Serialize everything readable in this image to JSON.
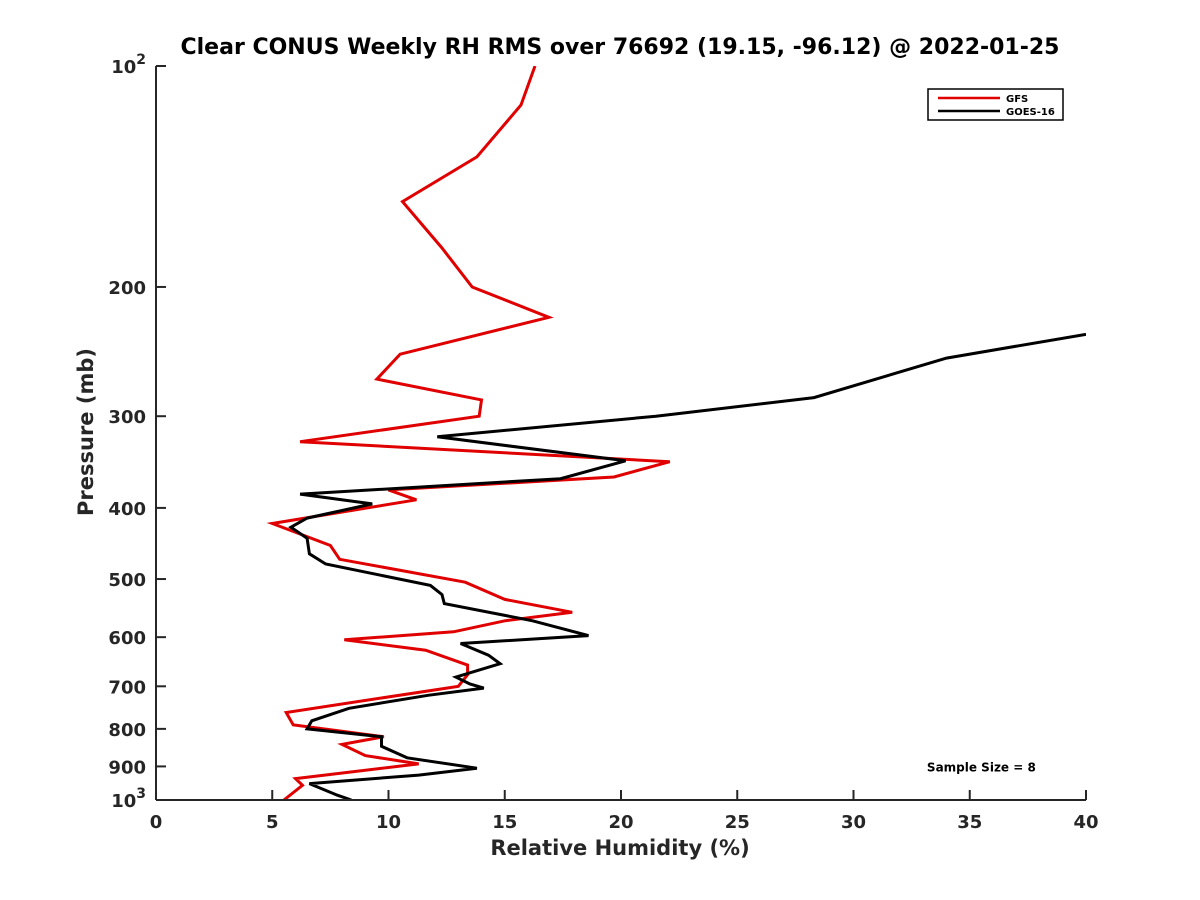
{
  "chart_data": {
    "type": "line",
    "title": "Clear CONUS Weekly RH RMS over 76692 (19.15, -96.12) @ 2022-01-25",
    "xlabel": "Relative Humidity (%)",
    "ylabel": "Pressure (mb)",
    "xlim": [
      0,
      40
    ],
    "ylim": [
      100,
      1000
    ],
    "yscale": "log",
    "y_reversed": true,
    "grid": false,
    "legend_position": "top-right",
    "x_ticks": [
      0,
      5,
      10,
      15,
      20,
      25,
      30,
      35,
      40
    ],
    "y_ticks": [
      {
        "value": 100,
        "base": "10",
        "exp": "2"
      },
      {
        "value": 200,
        "label": "200"
      },
      {
        "value": 300,
        "label": "300"
      },
      {
        "value": 400,
        "label": "400"
      },
      {
        "value": 500,
        "label": "500"
      },
      {
        "value": 600,
        "label": "600"
      },
      {
        "value": 700,
        "label": "700"
      },
      {
        "value": 800,
        "label": "800"
      },
      {
        "value": 900,
        "label": "900"
      },
      {
        "value": 1000,
        "base": "10",
        "exp": "3"
      }
    ],
    "series": [
      {
        "name": "GFS",
        "color": "#e00000",
        "x": [
          16.3,
          15.7,
          13.8,
          10.6,
          12.3,
          13.6,
          16.9,
          10.5,
          9.5,
          14.0,
          13.9,
          6.2,
          22.1,
          19.7,
          10.0,
          11.2,
          5.0,
          7.5,
          7.9,
          13.3,
          15.0,
          17.9,
          15.0,
          12.8,
          8.1,
          11.6,
          13.4,
          13.4,
          13.0,
          5.6,
          5.9,
          9.8,
          8.0,
          9.0,
          11.3,
          6.0,
          6.3,
          5.5
        ],
        "y": [
          100,
          113,
          133,
          153,
          177,
          200,
          220,
          247,
          267,
          285,
          300,
          325,
          346,
          363,
          378,
          390,
          420,
          450,
          470,
          505,
          533,
          555,
          570,
          590,
          605,
          625,
          655,
          675,
          700,
          760,
          790,
          820,
          840,
          870,
          893,
          935,
          955,
          1000
        ]
      },
      {
        "name": "GOES-16",
        "color": "#000000",
        "x": [
          40.0,
          34.0,
          28.3,
          21.5,
          12.1,
          20.2,
          17.4,
          6.2,
          9.3,
          6.5,
          5.8,
          6.5,
          6.6,
          7.3,
          11.8,
          12.3,
          12.4,
          16.2,
          18.6,
          13.1,
          14.3,
          14.8,
          12.9,
          13.5,
          14.1,
          11.7,
          8.3,
          6.7,
          6.5,
          9.7,
          9.7,
          10.8,
          13.8,
          11.3,
          6.6,
          7.8,
          8.4
        ],
        "y": [
          232,
          250,
          283,
          300,
          320,
          345,
          365,
          383,
          395,
          413,
          425,
          440,
          462,
          477,
          510,
          525,
          540,
          570,
          597,
          612,
          635,
          652,
          680,
          695,
          704,
          720,
          750,
          780,
          800,
          820,
          845,
          876,
          905,
          925,
          950,
          985,
          1000
        ]
      }
    ],
    "annotations": [
      {
        "text": "Sample Size = 8",
        "x": 35.5,
        "y": 900
      }
    ]
  }
}
